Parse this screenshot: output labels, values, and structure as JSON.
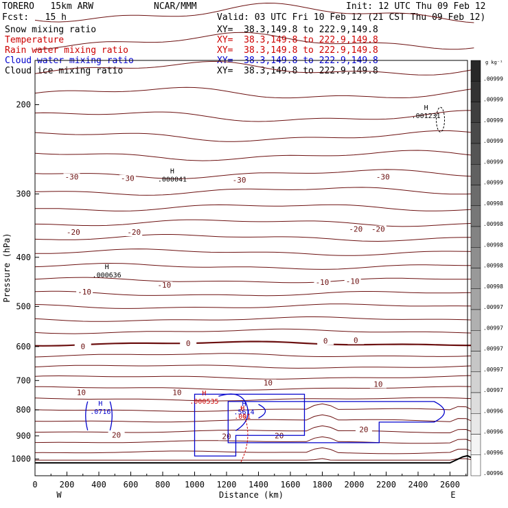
{
  "header": {
    "model": "TORERO   15km ARW",
    "org": "NCAR/MMM",
    "init": "Init: 12 UTC Thu 09 Feb 12",
    "fcst": "Fcst:   15 h",
    "valid": "Valid: 03 UTC Fri 10 Feb 12 (21 CST Thu 09 Feb 12)"
  },
  "fields": [
    {
      "name": "Snow mixing ratio",
      "xy": "XY=  38.3,149.8 to 222.9,149.8",
      "color": "#000000"
    },
    {
      "name": "Temperature",
      "xy": "XY=  38.3,149.8 to 222.9,149.8",
      "color": "#cc0000"
    },
    {
      "name": "Rain water mixing ratio",
      "xy": "XY=  38.3,149.8 to 222.9,149.8",
      "color": "#cc0000"
    },
    {
      "name": "Cloud water mixing ratio",
      "xy": "XY=  38.3,149.8 to 222.9,149.8",
      "color": "#0000cc"
    },
    {
      "name": "Cloud ice mixing ratio",
      "xy": "XY=  38.3,149.8 to 222.9,149.8",
      "color": "#000000"
    }
  ],
  "chart_data": {
    "type": "contour-cross-section",
    "xlabel": "Distance (km)",
    "ylabel": "Pressure (hPa)",
    "x_ticks": [
      0,
      200,
      400,
      600,
      800,
      1000,
      1200,
      1400,
      1600,
      1800,
      2000,
      2200,
      2400,
      2600
    ],
    "y_ticks": [
      200,
      300,
      400,
      500,
      600,
      700,
      800,
      900,
      1000
    ],
    "xlim": [
      0,
      2750
    ],
    "ylim": [
      1050,
      130
    ],
    "y_scale": "log",
    "x_end_labels": {
      "left": "W",
      "right": "E"
    },
    "colorbar": {
      "unit": "g kg⁻¹",
      "labels": [
        ".00999",
        ".00999",
        ".00999",
        ".00999",
        ".00999",
        ".00999",
        ".00998",
        ".00998",
        ".00998",
        ".00998",
        ".00998",
        ".00997",
        ".00997",
        ".00997",
        ".00997",
        ".00997",
        ".00996",
        ".00996",
        ".00996",
        ".00996"
      ]
    },
    "temperature_contour_labels": [
      {
        "x": 230,
        "p": 280,
        "label": "-30"
      },
      {
        "x": 580,
        "p": 282,
        "label": "-30"
      },
      {
        "x": 1280,
        "p": 284,
        "label": "-30"
      },
      {
        "x": 2180,
        "p": 280,
        "label": "-30"
      },
      {
        "x": 240,
        "p": 360,
        "label": "-20"
      },
      {
        "x": 620,
        "p": 360,
        "label": "-20"
      },
      {
        "x": 2010,
        "p": 355,
        "label": "-20"
      },
      {
        "x": 2150,
        "p": 355,
        "label": "-20"
      },
      {
        "x": 810,
        "p": 458,
        "label": "-10"
      },
      {
        "x": 310,
        "p": 472,
        "label": "-10"
      },
      {
        "x": 1800,
        "p": 452,
        "label": "-10"
      },
      {
        "x": 1990,
        "p": 450,
        "label": "-10"
      },
      {
        "x": 300,
        "p": 605,
        "label": "0"
      },
      {
        "x": 960,
        "p": 597,
        "label": "0"
      },
      {
        "x": 1820,
        "p": 590,
        "label": "0"
      },
      {
        "x": 2010,
        "p": 588,
        "label": "0"
      },
      {
        "x": 290,
        "p": 745,
        "label": "10"
      },
      {
        "x": 890,
        "p": 745,
        "label": "10"
      },
      {
        "x": 1460,
        "p": 714,
        "label": "10"
      },
      {
        "x": 2150,
        "p": 718,
        "label": "10"
      },
      {
        "x": 510,
        "p": 905,
        "label": "20"
      },
      {
        "x": 1200,
        "p": 910,
        "label": "20"
      },
      {
        "x": 1530,
        "p": 908,
        "label": "20"
      },
      {
        "x": 2060,
        "p": 882,
        "label": "20"
      }
    ],
    "maxima": [
      {
        "x": 860,
        "p": 280,
        "label": ".000041",
        "color": "#000000"
      },
      {
        "x": 2450,
        "p": 210,
        "label": ".001231",
        "color": "#000000"
      },
      {
        "x": 450,
        "p": 433,
        "label": ".000636",
        "color": "#000000"
      },
      {
        "x": 410,
        "p": 805,
        "label": ".0716",
        "color": "#0000cc"
      },
      {
        "x": 1310,
        "p": 806,
        "label": ".5614",
        "color": "#0000cc"
      },
      {
        "x": 1300,
        "p": 822,
        "label": ".001",
        "color": "#cc0000"
      },
      {
        "x": 1060,
        "p": 768,
        "label": ".000535",
        "color": "#cc0000"
      }
    ]
  }
}
